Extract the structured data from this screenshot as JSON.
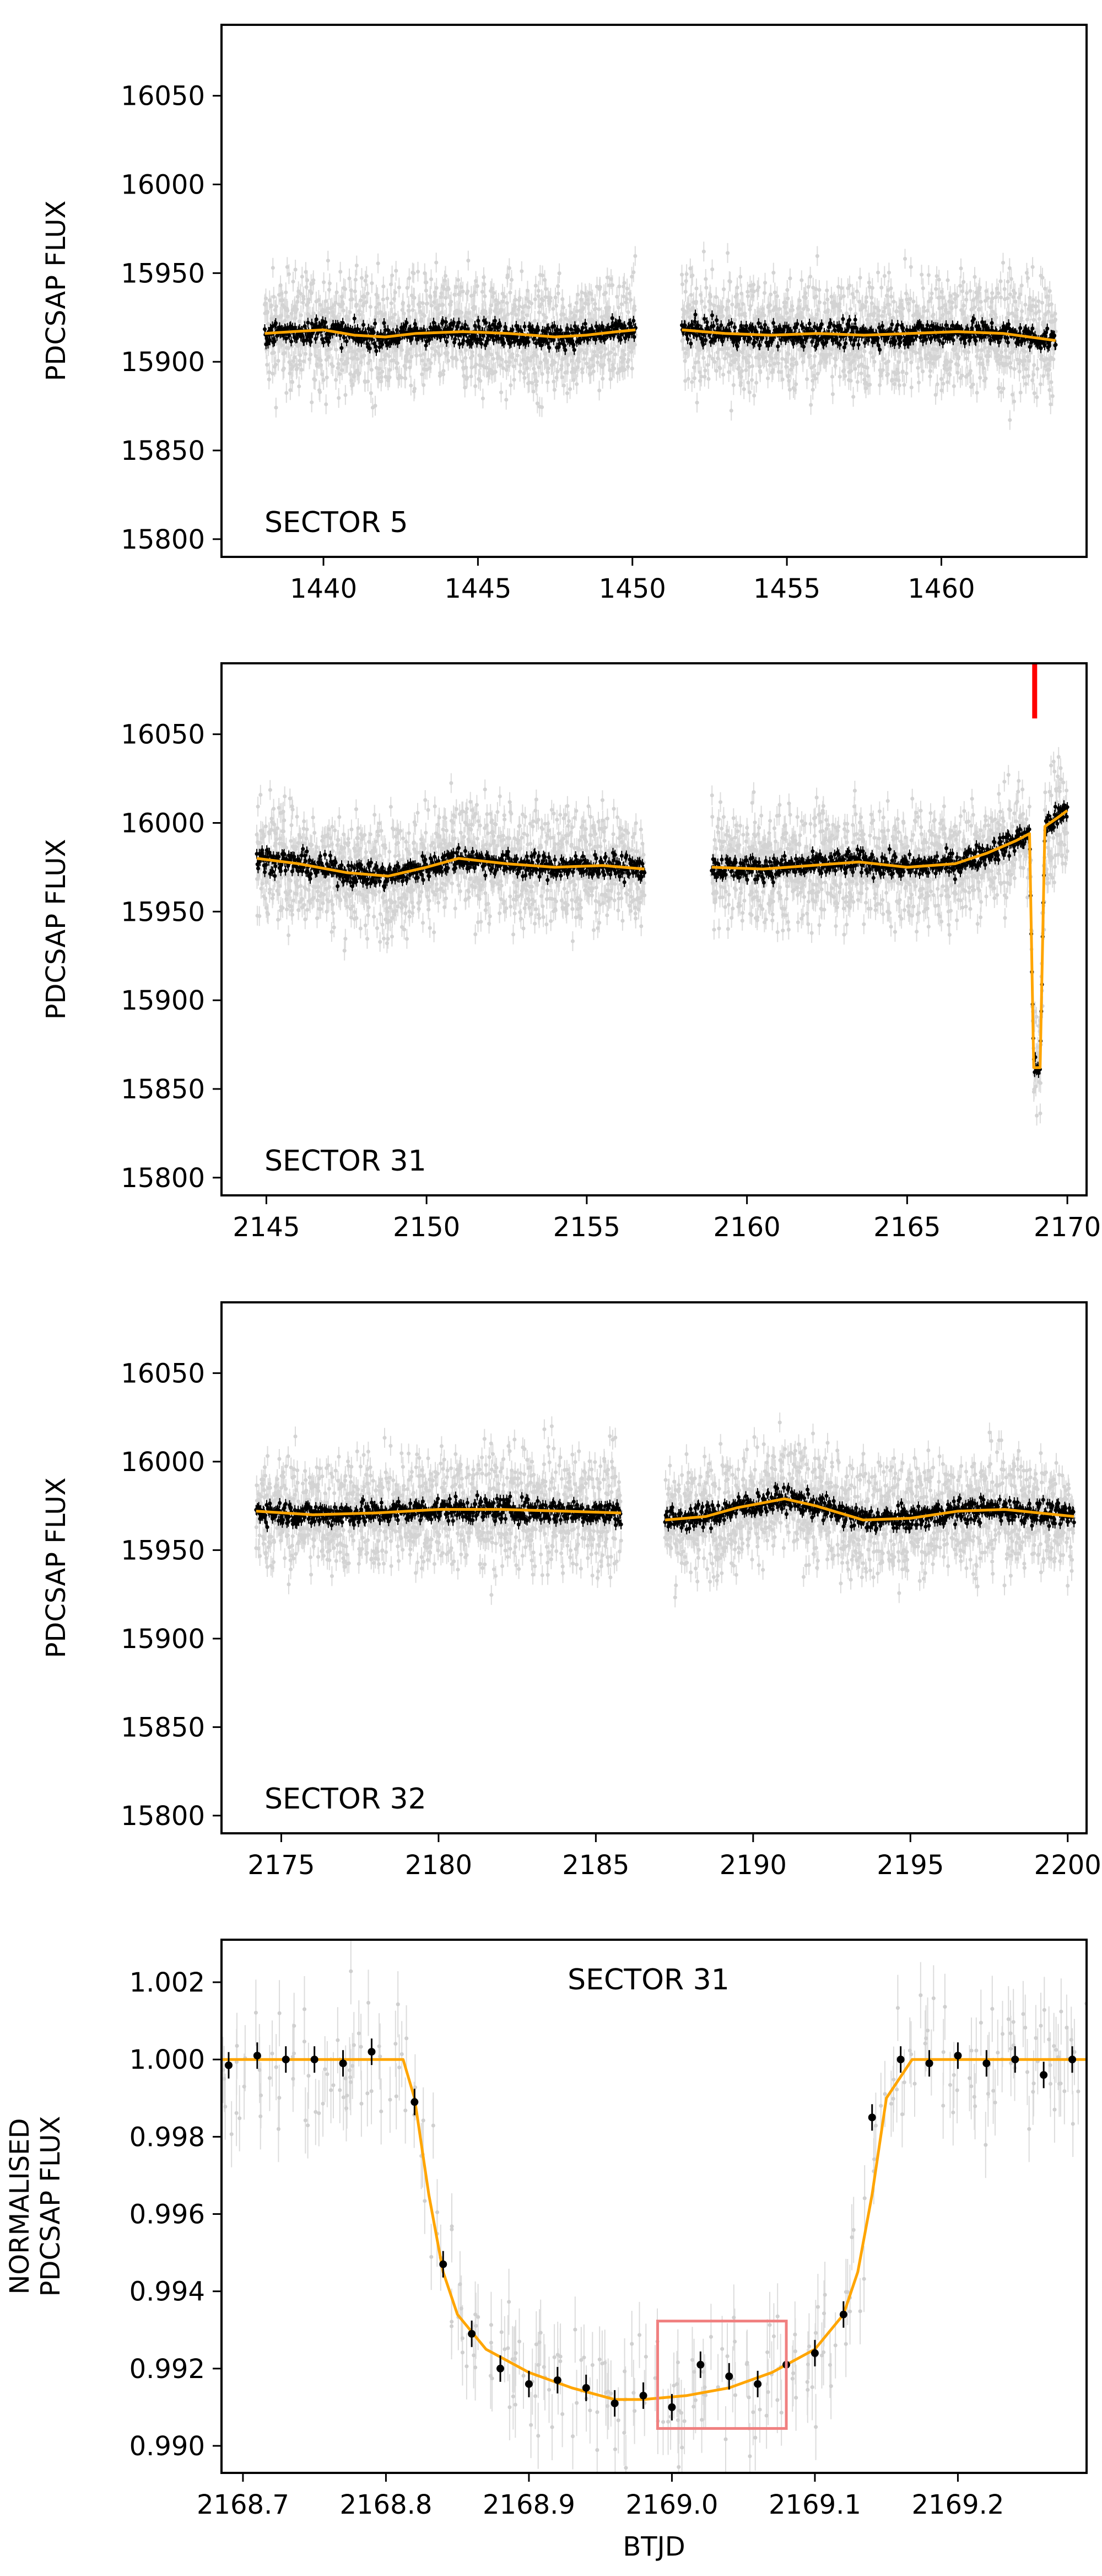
{
  "chart_data": [
    {
      "type": "scatter",
      "panel": "sector-5",
      "annotation": "SECTOR 5",
      "xlabel": "",
      "ylabel": "PDCSAP FLUX",
      "xlim": [
        1436.7,
        1464.7
      ],
      "ylim": [
        15790,
        16090
      ],
      "xticks": [
        1440,
        1445,
        1450,
        1455,
        1460
      ],
      "yticks": [
        15800,
        15850,
        15900,
        15950,
        16000,
        16050
      ],
      "segments": [
        [
          1438.1,
          1450.1
        ],
        [
          1451.6,
          1463.7
        ]
      ],
      "raw_flux": {
        "center": 15917,
        "half_range": 42,
        "color": "#d3d3d3"
      },
      "binned_flux": {
        "color": "#000000"
      },
      "model": {
        "color": "#ffa500",
        "segments": [
          [
            [
              1438.1,
              15916
            ],
            [
              1439.0,
              15917
            ],
            [
              1440.0,
              15918
            ],
            [
              1441.0,
              15915
            ],
            [
              1442.0,
              15914
            ],
            [
              1443.0,
              15916
            ],
            [
              1444.5,
              15917
            ],
            [
              1446.0,
              15916
            ],
            [
              1447.5,
              15914
            ],
            [
              1448.5,
              15915
            ],
            [
              1449.5,
              15917
            ],
            [
              1450.1,
              15918
            ]
          ],
          [
            [
              1451.6,
              15918
            ],
            [
              1453.0,
              15916
            ],
            [
              1454.5,
              15915
            ],
            [
              1456.0,
              15916
            ],
            [
              1457.5,
              15915
            ],
            [
              1459.0,
              15916
            ],
            [
              1460.5,
              15917
            ],
            [
              1462.0,
              15916
            ],
            [
              1463.7,
              15912
            ]
          ]
        ]
      },
      "transit_marker": null
    },
    {
      "type": "scatter",
      "panel": "sector-31",
      "annotation": "SECTOR 31",
      "xlabel": "",
      "ylabel": "PDCSAP FLUX",
      "xlim": [
        2143.6,
        2170.6
      ],
      "ylim": [
        15790,
        16090
      ],
      "xticks": [
        2145,
        2150,
        2155,
        2160,
        2165,
        2170
      ],
      "yticks": [
        15800,
        15850,
        15900,
        15950,
        16000,
        16050
      ],
      "segments": [
        [
          2144.7,
          2156.8
        ],
        [
          2158.9,
          2170.0
        ]
      ],
      "raw_flux": {
        "center": 15976,
        "half_range": 42,
        "color": "#d3d3d3"
      },
      "binned_flux": {
        "color": "#000000"
      },
      "model": {
        "color": "#ffa500",
        "segments": [
          [
            [
              2144.7,
              15980
            ],
            [
              2146.0,
              15977
            ],
            [
              2147.5,
              15972
            ],
            [
              2148.8,
              15970
            ],
            [
              2150.0,
              15975
            ],
            [
              2151.0,
              15980
            ],
            [
              2152.5,
              15977
            ],
            [
              2154.0,
              15975
            ],
            [
              2155.5,
              15976
            ],
            [
              2156.8,
              15974
            ]
          ],
          [
            [
              2158.9,
              15975
            ],
            [
              2160.5,
              15974
            ],
            [
              2162.0,
              15976
            ],
            [
              2163.5,
              15978
            ],
            [
              2165.0,
              15975
            ],
            [
              2166.5,
              15977
            ],
            [
              2167.5,
              15983
            ],
            [
              2168.4,
              15990
            ],
            [
              2168.82,
              15994
            ],
            [
              2168.95,
              15862
            ],
            [
              2169.15,
              15862
            ],
            [
              2169.3,
              15998
            ],
            [
              2169.7,
              16003
            ],
            [
              2170.0,
              16007
            ]
          ]
        ]
      },
      "transit_marker": {
        "x": 2168.98,
        "color": "#ff0000"
      }
    },
    {
      "type": "scatter",
      "panel": "sector-32",
      "annotation": "SECTOR 32",
      "xlabel": "",
      "ylabel": "PDCSAP FLUX",
      "xlim": [
        2173.1,
        2200.6
      ],
      "ylim": [
        15790,
        16090
      ],
      "xticks": [
        2175,
        2180,
        2185,
        2190,
        2195,
        2200
      ],
      "yticks": [
        15800,
        15850,
        15900,
        15950,
        16000,
        16050
      ],
      "segments": [
        [
          2174.2,
          2185.8
        ],
        [
          2187.2,
          2200.2
        ]
      ],
      "raw_flux": {
        "center": 15972,
        "half_range": 42,
        "color": "#d3d3d3"
      },
      "binned_flux": {
        "color": "#000000"
      },
      "model": {
        "color": "#ffa500",
        "segments": [
          [
            [
              2174.2,
              15972
            ],
            [
              2176.0,
              15970
            ],
            [
              2178.0,
              15971
            ],
            [
              2180.0,
              15973
            ],
            [
              2182.0,
              15973
            ],
            [
              2184.0,
              15972
            ],
            [
              2185.8,
              15971
            ]
          ],
          [
            [
              2187.2,
              15967
            ],
            [
              2188.5,
              15969
            ],
            [
              2189.5,
              15974
            ],
            [
              2191.0,
              15979
            ],
            [
              2192.0,
              15975
            ],
            [
              2193.5,
              15967
            ],
            [
              2195.0,
              15968
            ],
            [
              2196.5,
              15972
            ],
            [
              2198.0,
              15973
            ],
            [
              2200.2,
              15969
            ]
          ]
        ]
      },
      "transit_marker": null
    },
    {
      "type": "scatter",
      "panel": "sector-31-transit",
      "annotation": "SECTOR 31",
      "xlabel": "BTJD",
      "ylabel": "NORMALISED PDCSAP FLUX",
      "ylabel_lines": [
        "NORMALISED",
        "PDCSAP FLUX"
      ],
      "xlim": [
        2168.685,
        2169.29
      ],
      "ylim": [
        0.9893,
        1.0031
      ],
      "xticks": [
        2168.7,
        2168.8,
        2168.9,
        2169.0,
        2169.1,
        2169.2
      ],
      "xtick_labels": [
        "2168.7",
        "2168.8",
        "2168.9",
        "2169.0",
        "2169.1",
        "2169.2"
      ],
      "yticks": [
        0.99,
        0.992,
        0.994,
        0.996,
        0.998,
        1.0,
        1.002
      ],
      "ytick_labels": [
        "0.990",
        "0.992",
        "0.994",
        "0.996",
        "0.998",
        "1.000",
        "1.002"
      ],
      "raw_flux": {
        "color": "#d3d3d3"
      },
      "binned_flux": {
        "color": "#000000",
        "points": [
          [
            2168.69,
            0.99985
          ],
          [
            2168.71,
            1.0001
          ],
          [
            2168.73,
            1.0
          ],
          [
            2168.75,
            1.0
          ],
          [
            2168.77,
            0.9999
          ],
          [
            2168.79,
            1.0002
          ],
          [
            2168.82,
            0.9989
          ],
          [
            2168.84,
            0.9947
          ],
          [
            2168.86,
            0.9929
          ],
          [
            2168.88,
            0.992
          ],
          [
            2168.9,
            0.9916
          ],
          [
            2168.92,
            0.9917
          ],
          [
            2168.94,
            0.9915
          ],
          [
            2168.96,
            0.9911
          ],
          [
            2168.98,
            0.9913
          ],
          [
            2169.0,
            0.991
          ],
          [
            2169.02,
            0.9921
          ],
          [
            2169.04,
            0.9918
          ],
          [
            2169.06,
            0.9916
          ],
          [
            2169.08,
            0.9921
          ],
          [
            2169.1,
            0.9924
          ],
          [
            2169.12,
            0.9934
          ],
          [
            2169.14,
            0.9985
          ],
          [
            2169.16,
            1.0
          ],
          [
            2169.18,
            0.9999
          ],
          [
            2169.2,
            1.0001
          ],
          [
            2169.22,
            0.9999
          ],
          [
            2169.24,
            1.0
          ],
          [
            2169.26,
            0.9996
          ],
          [
            2169.28,
            1.0
          ]
        ]
      },
      "model": {
        "color": "#ffa500",
        "points": [
          [
            2168.685,
            1.0
          ],
          [
            2168.79,
            1.0
          ],
          [
            2168.812,
            1.0
          ],
          [
            2168.82,
            0.999
          ],
          [
            2168.83,
            0.9965
          ],
          [
            2168.84,
            0.9945
          ],
          [
            2168.85,
            0.9934
          ],
          [
            2168.87,
            0.9925
          ],
          [
            2168.9,
            0.9919
          ],
          [
            2168.93,
            0.9915
          ],
          [
            2168.96,
            0.9912
          ],
          [
            2168.98,
            0.9912
          ],
          [
            2169.01,
            0.9913
          ],
          [
            2169.04,
            0.9915
          ],
          [
            2169.07,
            0.9919
          ],
          [
            2169.1,
            0.9925
          ],
          [
            2169.12,
            0.9934
          ],
          [
            2169.13,
            0.9945
          ],
          [
            2169.14,
            0.9965
          ],
          [
            2169.15,
            0.999
          ],
          [
            2169.168,
            1.0
          ],
          [
            2169.29,
            1.0
          ]
        ]
      },
      "highlight_box": {
        "x": [
          2168.99,
          2169.08
        ],
        "y": [
          0.99045,
          0.99323
        ],
        "color": "#f08080"
      }
    }
  ]
}
